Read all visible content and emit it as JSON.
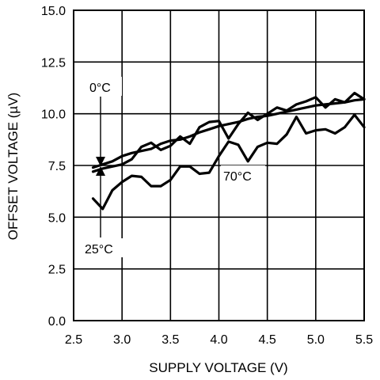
{
  "chart_data": {
    "type": "line",
    "xlabel": "SUPPLY VOLTAGE (V)",
    "ylabel": "OFFSET VOLTAGE (µV)",
    "xlim": [
      2.5,
      5.5
    ],
    "ylim": [
      0,
      15
    ],
    "x_ticks": [
      "2.5",
      "3.0",
      "3.5",
      "4.0",
      "4.5",
      "5.0",
      "5.5"
    ],
    "y_ticks": [
      "0.0",
      "2.5",
      "5.0",
      "7.5",
      "10.0",
      "12.5",
      "15.0"
    ],
    "grid": true,
    "series": [
      {
        "name": "0°C",
        "x": [
          2.7,
          2.8,
          2.9,
          3.0,
          3.1,
          3.2,
          3.3,
          3.4,
          3.5,
          3.6,
          3.7,
          3.8,
          3.9,
          4.0,
          4.1,
          4.2,
          4.3,
          4.4,
          4.5,
          4.6,
          4.7,
          4.8,
          4.9,
          5.0,
          5.1,
          5.2,
          5.3,
          5.4,
          5.5
        ],
        "values": [
          7.4,
          7.55,
          7.7,
          7.95,
          8.1,
          8.2,
          8.3,
          8.55,
          8.7,
          8.75,
          8.9,
          9.1,
          9.25,
          9.4,
          9.5,
          9.6,
          9.75,
          9.85,
          9.9,
          10.0,
          10.1,
          10.2,
          10.3,
          10.4,
          10.45,
          10.5,
          10.55,
          10.65,
          10.7
        ]
      },
      {
        "name": "25°C",
        "x": [
          2.7,
          2.8,
          2.9,
          3.0,
          3.1,
          3.2,
          3.3,
          3.4,
          3.5,
          3.6,
          3.7,
          3.8,
          3.9,
          4.0,
          4.1,
          4.2,
          4.3,
          4.4,
          4.5,
          4.6,
          4.7,
          4.8,
          4.9,
          5.0,
          5.1,
          5.2,
          5.3,
          5.4,
          5.5
        ],
        "values": [
          7.2,
          7.35,
          7.45,
          7.55,
          7.8,
          8.4,
          8.6,
          8.25,
          8.45,
          8.9,
          8.55,
          9.35,
          9.6,
          9.65,
          8.8,
          9.5,
          10.05,
          9.7,
          10.0,
          10.3,
          10.15,
          10.45,
          10.6,
          10.8,
          10.3,
          10.7,
          10.55,
          11.0,
          10.7
        ]
      },
      {
        "name": "70°C",
        "x": [
          2.7,
          2.8,
          2.9,
          3.0,
          3.1,
          3.2,
          3.3,
          3.4,
          3.5,
          3.6,
          3.7,
          3.8,
          3.9,
          4.0,
          4.1,
          4.2,
          4.3,
          4.4,
          4.5,
          4.6,
          4.7,
          4.8,
          4.9,
          5.0,
          5.1,
          5.2,
          5.3,
          5.4,
          5.5
        ],
        "values": [
          5.9,
          5.4,
          6.3,
          6.7,
          7.0,
          6.95,
          6.5,
          6.5,
          6.8,
          7.45,
          7.45,
          7.1,
          7.15,
          7.95,
          8.65,
          8.5,
          7.7,
          8.4,
          8.6,
          8.55,
          9.0,
          9.85,
          9.05,
          9.2,
          9.25,
          9.05,
          9.35,
          9.95,
          9.35
        ]
      }
    ],
    "annotations": [
      "0°C",
      "25°C",
      "70°C"
    ]
  }
}
